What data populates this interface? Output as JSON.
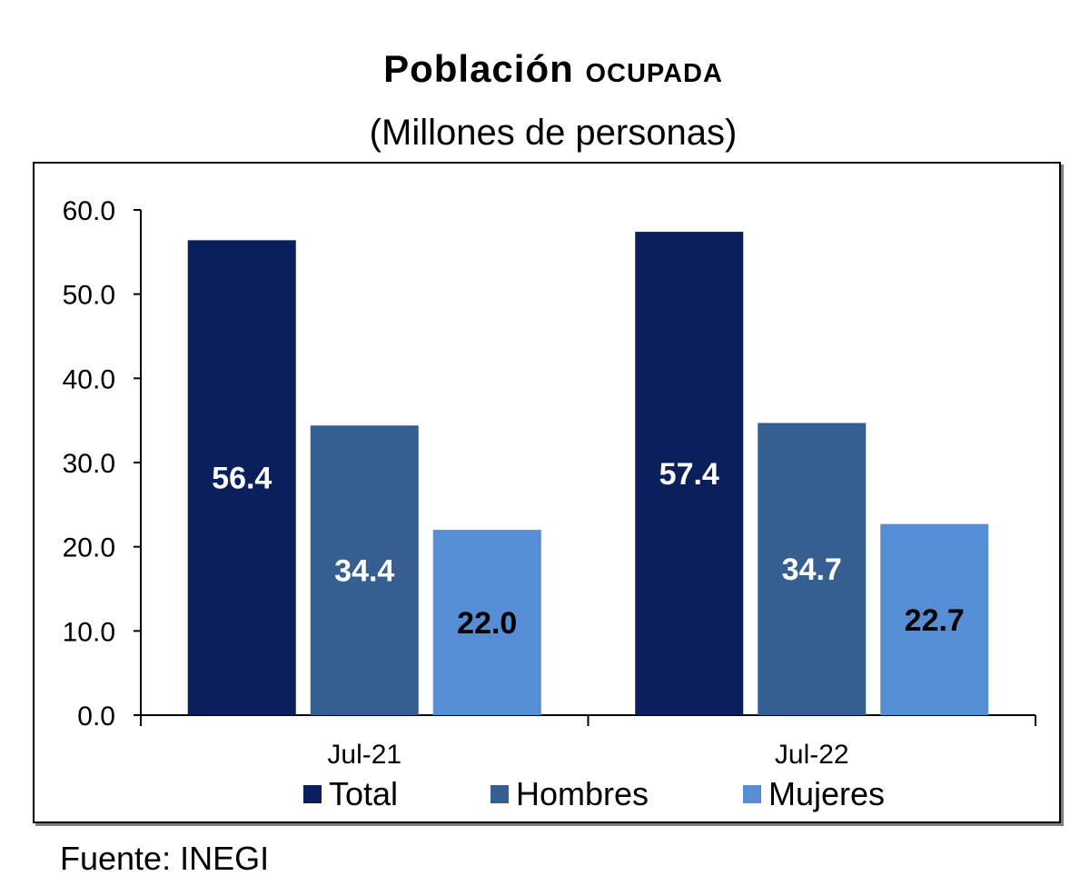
{
  "chart_data": {
    "type": "bar",
    "title_main": "Población",
    "title_caps": "ocupada",
    "subtitle": "(Millones de personas)",
    "categories": [
      "Jul-21",
      "Jul-22"
    ],
    "series": [
      {
        "name": "Total",
        "values": [
          56.4,
          57.4
        ],
        "color": "#0a1f5c",
        "label_color": "#ffffff"
      },
      {
        "name": "Hombres",
        "values": [
          34.4,
          34.7
        ],
        "color": "#365f91",
        "label_color": "#ffffff"
      },
      {
        "name": "Mujeres",
        "values": [
          22.0,
          22.7
        ],
        "color": "#558ed5",
        "label_color": "#000000"
      }
    ],
    "ylim": [
      0,
      60
    ],
    "yticks": [
      "0.0",
      "10.0",
      "20.0",
      "30.0",
      "40.0",
      "50.0",
      "60.0"
    ],
    "grid": false,
    "legend_position": "bottom"
  },
  "source": "Fuente: INEGI"
}
